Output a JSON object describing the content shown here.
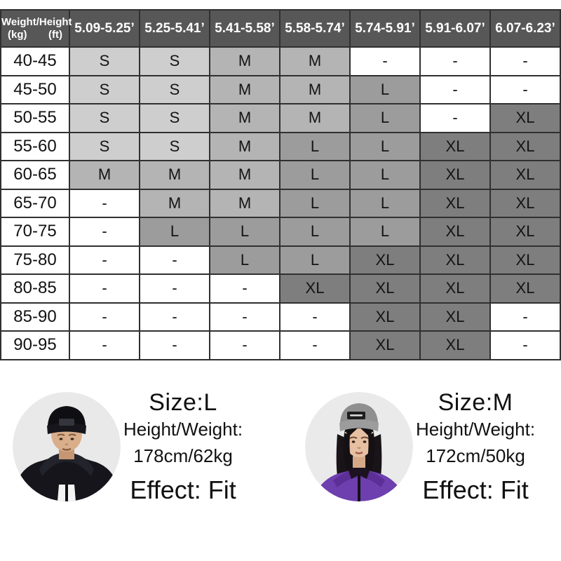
{
  "table": {
    "corner": {
      "line1": "Weight/Height",
      "kg": "(kg)",
      "ft": "(ft)"
    },
    "columns": [
      "5.09-5.25’",
      "5.25-5.41’",
      "5.41-5.58’",
      "5.58-5.74’",
      "5.74-5.91’",
      "5.91-6.07’",
      "6.07-6.23’"
    ],
    "rows": [
      {
        "weight": "40-45",
        "cells": [
          "S",
          "S",
          "M",
          "M",
          "-",
          "-",
          "-"
        ]
      },
      {
        "weight": "45-50",
        "cells": [
          "S",
          "S",
          "M",
          "M",
          "L",
          "-",
          "-"
        ]
      },
      {
        "weight": "50-55",
        "cells": [
          "S",
          "S",
          "M",
          "M",
          "L",
          "-",
          "XL"
        ]
      },
      {
        "weight": "55-60",
        "cells": [
          "S",
          "S",
          "M",
          "L",
          "L",
          "XL",
          "XL"
        ]
      },
      {
        "weight": "60-65",
        "cells": [
          "M",
          "M",
          "M",
          "L",
          "L",
          "XL",
          "XL"
        ]
      },
      {
        "weight": "65-70",
        "cells": [
          "-",
          "M",
          "M",
          "L",
          "L",
          "XL",
          "XL"
        ]
      },
      {
        "weight": "70-75",
        "cells": [
          "-",
          "L",
          "L",
          "L",
          "L",
          "XL",
          "XL"
        ]
      },
      {
        "weight": "75-80",
        "cells": [
          "-",
          "-",
          "L",
          "L",
          "XL",
          "XL",
          "XL"
        ]
      },
      {
        "weight": "80-85",
        "cells": [
          "-",
          "-",
          "-",
          "XL",
          "XL",
          "XL",
          "XL"
        ]
      },
      {
        "weight": "85-90",
        "cells": [
          "-",
          "-",
          "-",
          "-",
          "XL",
          "XL",
          "-"
        ]
      },
      {
        "weight": "90-95",
        "cells": [
          "-",
          "-",
          "-",
          "-",
          "XL",
          "XL",
          "-"
        ]
      }
    ],
    "header_bg": "#575757",
    "size_colors": {
      "S": "#cecece",
      "M": "#b4b4b4",
      "L": "#9c9c9c",
      "XL": "#7e7e7e",
      "-": "#ffffff"
    }
  },
  "models": [
    {
      "size_label": "Size:L",
      "height_weight_label": "Height/Weight:",
      "height_weight_value": "178cm/62kg",
      "effect_label": "Effect: Fit",
      "photo": "male-model-black-jacket"
    },
    {
      "size_label": "Size:M",
      "height_weight_label": "Height/Weight:",
      "height_weight_value": "172cm/50kg",
      "effect_label": "Effect: Fit",
      "photo": "female-model-purple-jacket"
    }
  ]
}
